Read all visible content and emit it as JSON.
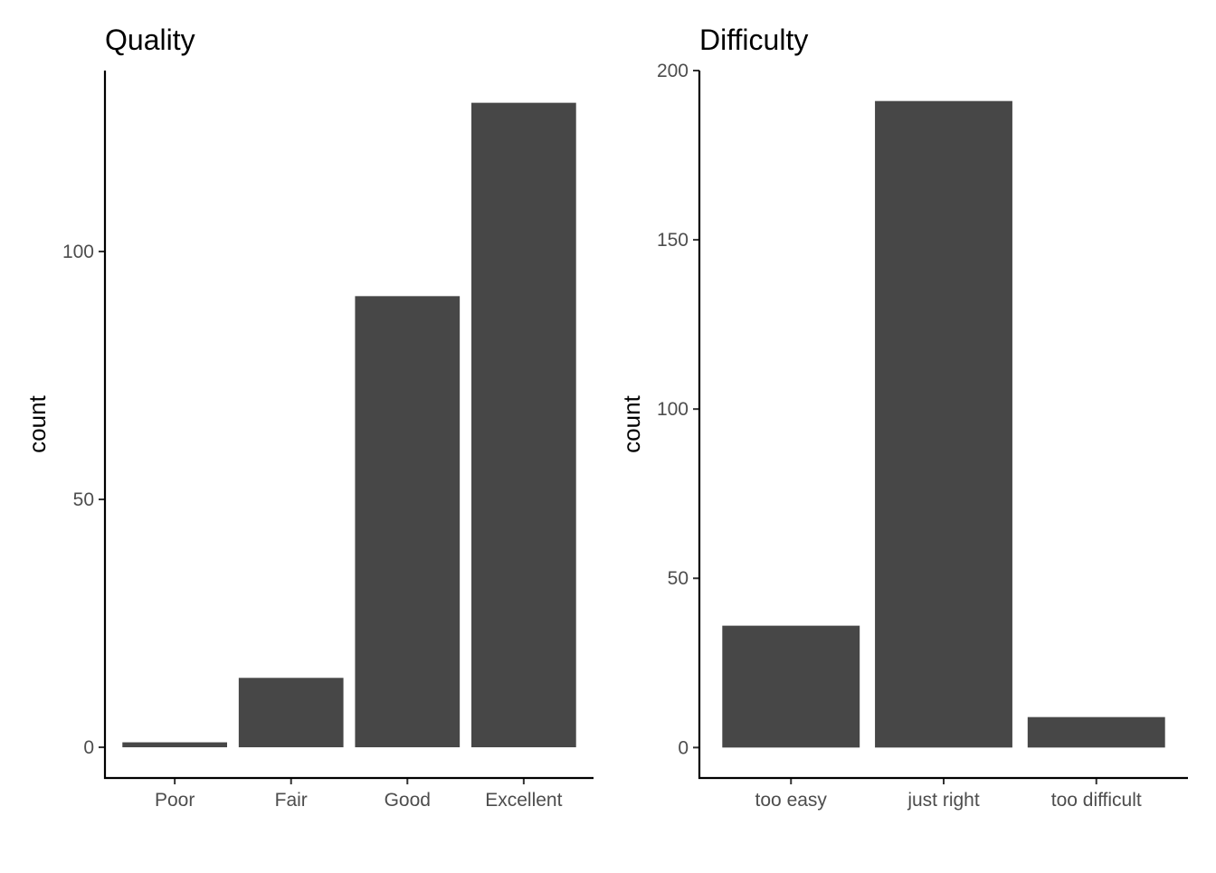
{
  "chart_data": [
    {
      "type": "bar",
      "title": "Quality",
      "xlabel": "",
      "ylabel": "count",
      "categories": [
        "Poor",
        "Fair",
        "Good",
        "Excellent"
      ],
      "values": [
        1,
        14,
        91,
        130
      ],
      "ylim": [
        -6.2,
        136.5
      ],
      "yticks": [
        0,
        50,
        100
      ],
      "grid": false,
      "legend": "none",
      "bar_color": "#474747"
    },
    {
      "type": "bar",
      "title": "Difficulty",
      "xlabel": "",
      "ylabel": "count",
      "categories": [
        "too easy",
        "just right",
        "too difficult"
      ],
      "values": [
        36,
        191,
        9
      ],
      "ylim": [
        -9,
        200
      ],
      "yticks": [
        0,
        50,
        100,
        150,
        200
      ],
      "grid": false,
      "legend": "none",
      "bar_color": "#474747"
    }
  ]
}
